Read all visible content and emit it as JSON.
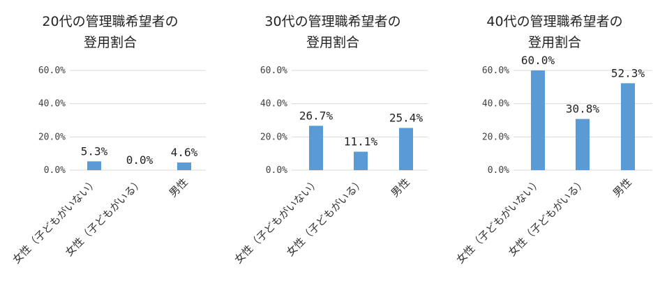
{
  "chart_data": [
    {
      "type": "bar",
      "title": [
        "20代の管理職希望者の",
        "登用割合"
      ],
      "categories": [
        "女性（子どもがいない）",
        "女性（子どもがいる）",
        "男性"
      ],
      "values": [
        5.3,
        0.0,
        4.6
      ],
      "value_labels": [
        "5.3%",
        "0.0%",
        "4.6%"
      ],
      "y_ticks": [
        "0.0%",
        "20.0%",
        "40.0%",
        "60.0%"
      ],
      "ylim": [
        0,
        60
      ],
      "grid": true,
      "legend": "none"
    },
    {
      "type": "bar",
      "title": [
        "30代の管理職希望者の",
        "登用割合"
      ],
      "categories": [
        "女性（子どもがいない）",
        "女性（子どもがいる）",
        "男性"
      ],
      "values": [
        26.7,
        11.1,
        25.4
      ],
      "value_labels": [
        "26.7%",
        "11.1%",
        "25.4%"
      ],
      "y_ticks": [
        "0.0%",
        "20.0%",
        "40.0%",
        "60.0%"
      ],
      "ylim": [
        0,
        60
      ],
      "grid": true,
      "legend": "none"
    },
    {
      "type": "bar",
      "title": [
        "40代の管理職希望者の",
        "登用割合"
      ],
      "categories": [
        "女性（子どもがいない）",
        "女性（子どもがいる）",
        "男性"
      ],
      "values": [
        60.0,
        30.8,
        52.3
      ],
      "value_labels": [
        "60.0%",
        "30.8%",
        "52.3%"
      ],
      "y_ticks": [
        "0.0%",
        "20.0%",
        "40.0%",
        "60.0%"
      ],
      "ylim": [
        0,
        60
      ],
      "grid": true,
      "legend": "none"
    }
  ],
  "colors": {
    "bar": "#5b9bd5",
    "grid": "#d9d9d9"
  }
}
